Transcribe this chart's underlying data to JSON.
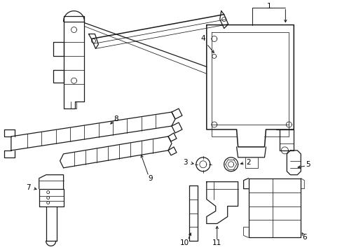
{
  "bg_color": "#ffffff",
  "line_color": "#1a1a1a",
  "text_color": "#000000",
  "fig_width": 4.89,
  "fig_height": 3.6,
  "dpi": 100,
  "annotation_fontsize": 7.5,
  "lw_main": 0.9,
  "lw_thin": 0.55,
  "lw_thick": 1.1
}
